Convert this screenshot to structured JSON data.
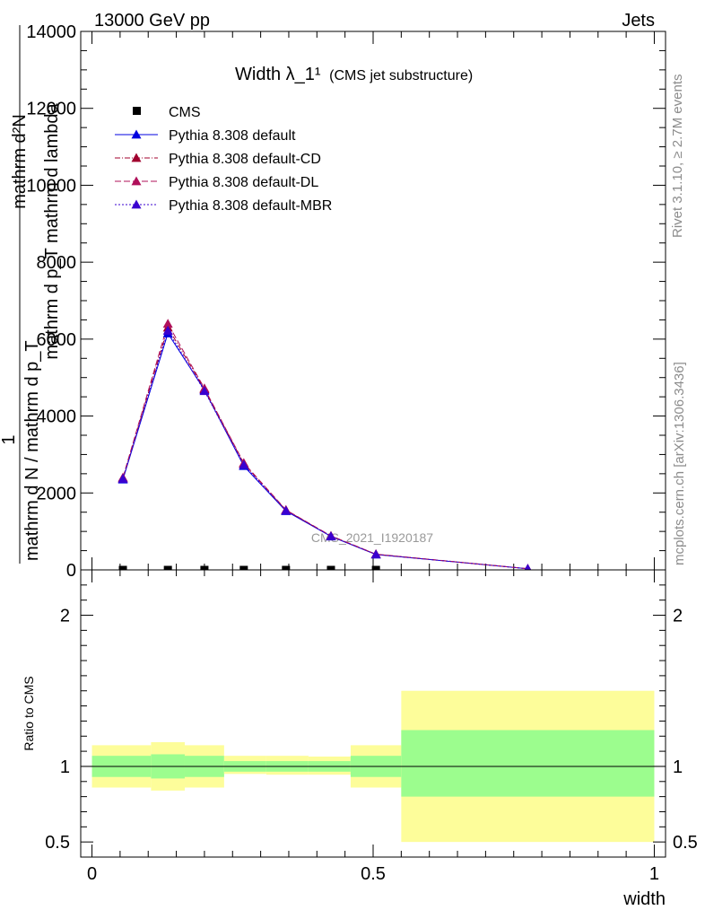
{
  "header": {
    "left": "13000 GeV pp",
    "right": "Jets"
  },
  "side_labels": {
    "rivet": "Rivet 3.1.10, ≥ 2.7M events",
    "mcplots": "mcplots.cern.ch [arXiv:1306.3436]"
  },
  "watermark": "CMS_2021_I1920187",
  "chart_data": [
    {
      "type": "line",
      "title": "Width λ_1¹",
      "title_note": "(CMS jet substructure)",
      "ylabel_parts": [
        "1",
        "mathrm d N / mathrm d p_T",
        "mathrm d²N",
        "mathrm d p_T mathrm d lambda"
      ],
      "ylim": [
        0,
        14000
      ],
      "xlim": [
        -0.02,
        1.02
      ],
      "y_ticks": [
        0,
        2000,
        4000,
        6000,
        8000,
        10000,
        12000,
        14000
      ],
      "y_tick_labels": [
        "0",
        "2000",
        "4000",
        "6000",
        "8000",
        "10000",
        "12000",
        "14000"
      ],
      "legend_position": "top-left",
      "cms": {
        "name": "CMS",
        "color": "#000000",
        "x": [
          0.055,
          0.135,
          0.2,
          0.27,
          0.345,
          0.425,
          0.505
        ],
        "values": [
          0,
          0,
          0,
          0,
          0,
          0,
          0
        ]
      },
      "series": [
        {
          "name": "Pythia 8.308 default",
          "color": "#0000e0",
          "dash": "",
          "x": [
            0.055,
            0.135,
            0.2,
            0.27,
            0.345,
            0.425,
            0.505,
            0.775
          ],
          "values": [
            2350,
            6150,
            4680,
            2700,
            1530,
            870,
            400,
            30
          ]
        },
        {
          "name": "Pythia 8.308 default-CD",
          "color": "#a0002e",
          "dash": "6,2,1,2",
          "x": [
            0.055,
            0.135,
            0.2,
            0.27,
            0.345,
            0.425,
            0.505,
            0.775
          ],
          "values": [
            2380,
            6300,
            4700,
            2760,
            1550,
            880,
            405,
            30
          ]
        },
        {
          "name": "Pythia 8.308 default-DL",
          "color": "#b0105a",
          "dash": "7,3",
          "x": [
            0.055,
            0.135,
            0.2,
            0.27,
            0.345,
            0.425,
            0.505,
            0.775
          ],
          "values": [
            2400,
            6400,
            4720,
            2780,
            1560,
            885,
            410,
            30
          ]
        },
        {
          "name": "Pythia 8.308 default-MBR",
          "color": "#3a00d0",
          "dash": "2,2",
          "x": [
            0.055,
            0.135,
            0.2,
            0.27,
            0.345,
            0.425,
            0.505,
            0.775
          ],
          "values": [
            2370,
            6220,
            4650,
            2730,
            1540,
            875,
            402,
            30
          ]
        }
      ]
    },
    {
      "type": "area",
      "ylabel": "Ratio to CMS",
      "xlabel": "width",
      "ylim": [
        0.4,
        2.3
      ],
      "xlim": [
        -0.02,
        1.02
      ],
      "x_ticks": [
        0,
        0.5,
        1
      ],
      "x_tick_labels": [
        "0",
        "0.5",
        "1"
      ],
      "y_ticks": [
        0.5,
        1,
        2
      ],
      "y_tick_labels": [
        "0.5",
        "1",
        "2"
      ],
      "reference": 1,
      "bands": [
        {
          "x_low": 0.0,
          "x_high": 0.105,
          "inner": [
            0.93,
            1.07
          ],
          "outer": [
            0.86,
            1.14
          ]
        },
        {
          "x_low": 0.105,
          "x_high": 0.165,
          "inner": [
            0.92,
            1.08
          ],
          "outer": [
            0.84,
            1.16
          ]
        },
        {
          "x_low": 0.165,
          "x_high": 0.235,
          "inner": [
            0.93,
            1.07
          ],
          "outer": [
            0.86,
            1.14
          ]
        },
        {
          "x_low": 0.235,
          "x_high": 0.31,
          "inner": [
            0.965,
            1.035
          ],
          "outer": [
            0.95,
            1.07
          ]
        },
        {
          "x_low": 0.31,
          "x_high": 0.385,
          "inner": [
            0.965,
            1.035
          ],
          "outer": [
            0.945,
            1.07
          ]
        },
        {
          "x_low": 0.385,
          "x_high": 0.46,
          "inner": [
            0.965,
            1.035
          ],
          "outer": [
            0.945,
            1.065
          ]
        },
        {
          "x_low": 0.46,
          "x_high": 0.55,
          "inner": [
            0.93,
            1.07
          ],
          "outer": [
            0.86,
            1.14
          ]
        },
        {
          "x_low": 0.55,
          "x_high": 1.0,
          "inner": [
            0.8,
            1.24
          ],
          "outer": [
            0.5,
            1.5
          ]
        }
      ],
      "band_colors": {
        "inner": "#9cfd8e",
        "outer": "#fdfd9a"
      }
    }
  ]
}
